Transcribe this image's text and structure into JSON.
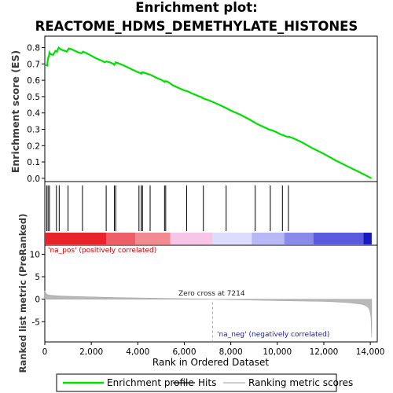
{
  "chart_data": {
    "type": "line",
    "title": "Enrichment plot: REACTOME_HDMS_DEMETHYLATE_HISTONES",
    "top_panel": {
      "ylabel": "Enrichment score (ES)",
      "ylim": [
        -0.02,
        0.87
      ],
      "yticks": [
        0.0,
        0.1,
        0.2,
        0.3,
        0.4,
        0.5,
        0.6,
        0.7,
        0.8
      ],
      "ytick_labels": [
        "0.0",
        "0.1",
        "0.2",
        "0.3",
        "0.4",
        "0.5",
        "0.6",
        "0.7",
        "0.8"
      ],
      "series": [
        {
          "name": "Enrichment profile",
          "color": "#00e000",
          "x": [
            0,
            100,
            140,
            180,
            200,
            250,
            350,
            420,
            460,
            520,
            600,
            680,
            760,
            860,
            950,
            1030,
            1150,
            1300,
            1450,
            1580,
            1640,
            1800,
            2000,
            2200,
            2450,
            2580,
            2640,
            2800,
            2950,
            2990,
            3050,
            3150,
            3400,
            3700,
            4000,
            4100,
            4150,
            4200,
            4300,
            4500,
            4600,
            4800,
            5050,
            5150,
            5200,
            5300,
            5500,
            5800,
            6050,
            6100,
            6400,
            6750,
            6800,
            7100,
            7500,
            7800,
            8000,
            8400,
            8800,
            9050,
            9100,
            9400,
            9700,
            9750,
            10000,
            10200,
            10250,
            10400,
            10480,
            10600,
            11000,
            11500,
            12000,
            12500,
            13000,
            13500,
            14050
          ],
          "y": [
            0.695,
            0.69,
            0.735,
            0.75,
            0.77,
            0.76,
            0.755,
            0.77,
            0.78,
            0.775,
            0.8,
            0.79,
            0.785,
            0.78,
            0.775,
            0.795,
            0.79,
            0.78,
            0.77,
            0.765,
            0.775,
            0.765,
            0.75,
            0.735,
            0.72,
            0.71,
            0.715,
            0.71,
            0.7,
            0.695,
            0.71,
            0.705,
            0.69,
            0.67,
            0.65,
            0.645,
            0.64,
            0.65,
            0.645,
            0.635,
            0.63,
            0.615,
            0.6,
            0.59,
            0.595,
            0.59,
            0.57,
            0.55,
            0.535,
            0.535,
            0.515,
            0.495,
            0.49,
            0.475,
            0.45,
            0.43,
            0.415,
            0.39,
            0.36,
            0.34,
            0.335,
            0.315,
            0.295,
            0.295,
            0.28,
            0.265,
            0.265,
            0.255,
            0.255,
            0.25,
            0.225,
            0.185,
            0.15,
            0.11,
            0.075,
            0.04,
            0.0
          ]
        }
      ]
    },
    "hits": {
      "name": "Hits",
      "x": [
        80,
        140,
        200,
        500,
        620,
        1000,
        1620,
        2640,
        2990,
        3050,
        4050,
        4150,
        4200,
        4530,
        5150,
        5200,
        6100,
        6820,
        7800,
        9050,
        9700,
        10220,
        10480
      ]
    },
    "ranked_metric_panel": {
      "ylabel": "Ranked list metric (PreRanked)",
      "ylim": [
        -9.5,
        12
      ],
      "yticks": [
        -5,
        0,
        5,
        10
      ],
      "ytick_labels": [
        "-5",
        "0",
        "5",
        "10"
      ],
      "series": [
        {
          "name": "Ranking metric scores",
          "color": "#b0b0b0",
          "x": [
            0,
            30,
            80,
            150,
            300,
            600,
            1000,
            2000,
            3000,
            4000,
            5000,
            6000,
            7000,
            7214,
            7500,
            8000,
            9000,
            10000,
            11000,
            12000,
            12500,
            13000,
            13300,
            13600,
            13800,
            13900,
            13980,
            14030,
            14060
          ],
          "y": [
            1.9,
            1.5,
            1.1,
            0.95,
            0.85,
            0.75,
            0.65,
            0.5,
            0.38,
            0.28,
            0.2,
            0.12,
            0.04,
            0.0,
            -0.04,
            -0.1,
            -0.2,
            -0.3,
            -0.4,
            -0.5,
            -0.6,
            -0.75,
            -0.9,
            -1.1,
            -1.4,
            -1.8,
            -2.5,
            -4.0,
            -8.5
          ]
        }
      ],
      "annotations": {
        "pos_label": "'na_pos' (positively correlated)",
        "neg_label": "'na_neg' (negatively correlated)",
        "zero_cross_label": "Zero cross at 7214",
        "zero_cross_x": 7214,
        "pos_color": "#cc0000",
        "neg_color": "#1a1acc"
      }
    },
    "xaxis": {
      "xlabel": "Rank in Ordered Dataset",
      "xlim": [
        0,
        14300
      ],
      "xticks": [
        0,
        2000,
        4000,
        6000,
        8000,
        10000,
        12000,
        14000
      ],
      "xtick_labels": [
        "0",
        "2,000",
        "4,000",
        "6,000",
        "8,000",
        "10,000",
        "12,000",
        "14,000"
      ]
    },
    "color_bar": {
      "segments": [
        {
          "x0": 0,
          "x1": 2650,
          "color": "#e8242a"
        },
        {
          "x0": 2650,
          "x1": 3900,
          "color": "#ee5e66"
        },
        {
          "x0": 3900,
          "x1": 5400,
          "color": "#f28a92"
        },
        {
          "x0": 5400,
          "x1": 7214,
          "color": "#f8c4e8"
        },
        {
          "x0": 7214,
          "x1": 8900,
          "color": "#dcdcfc"
        },
        {
          "x0": 8900,
          "x1": 10300,
          "color": "#b8b8f4"
        },
        {
          "x0": 10300,
          "x1": 11550,
          "color": "#8a8aea"
        },
        {
          "x0": 11550,
          "x1": 13700,
          "color": "#5a5ade"
        },
        {
          "x0": 13700,
          "x1": 14060,
          "color": "#1818c0"
        }
      ]
    },
    "legend": {
      "placement": "bottom",
      "items": [
        {
          "label": "Enrichment profile",
          "color": "#00e000"
        },
        {
          "label": "Hits",
          "color": "#000000"
        },
        {
          "label": "Ranking metric scores",
          "color": "#b0b0b0"
        }
      ]
    }
  }
}
